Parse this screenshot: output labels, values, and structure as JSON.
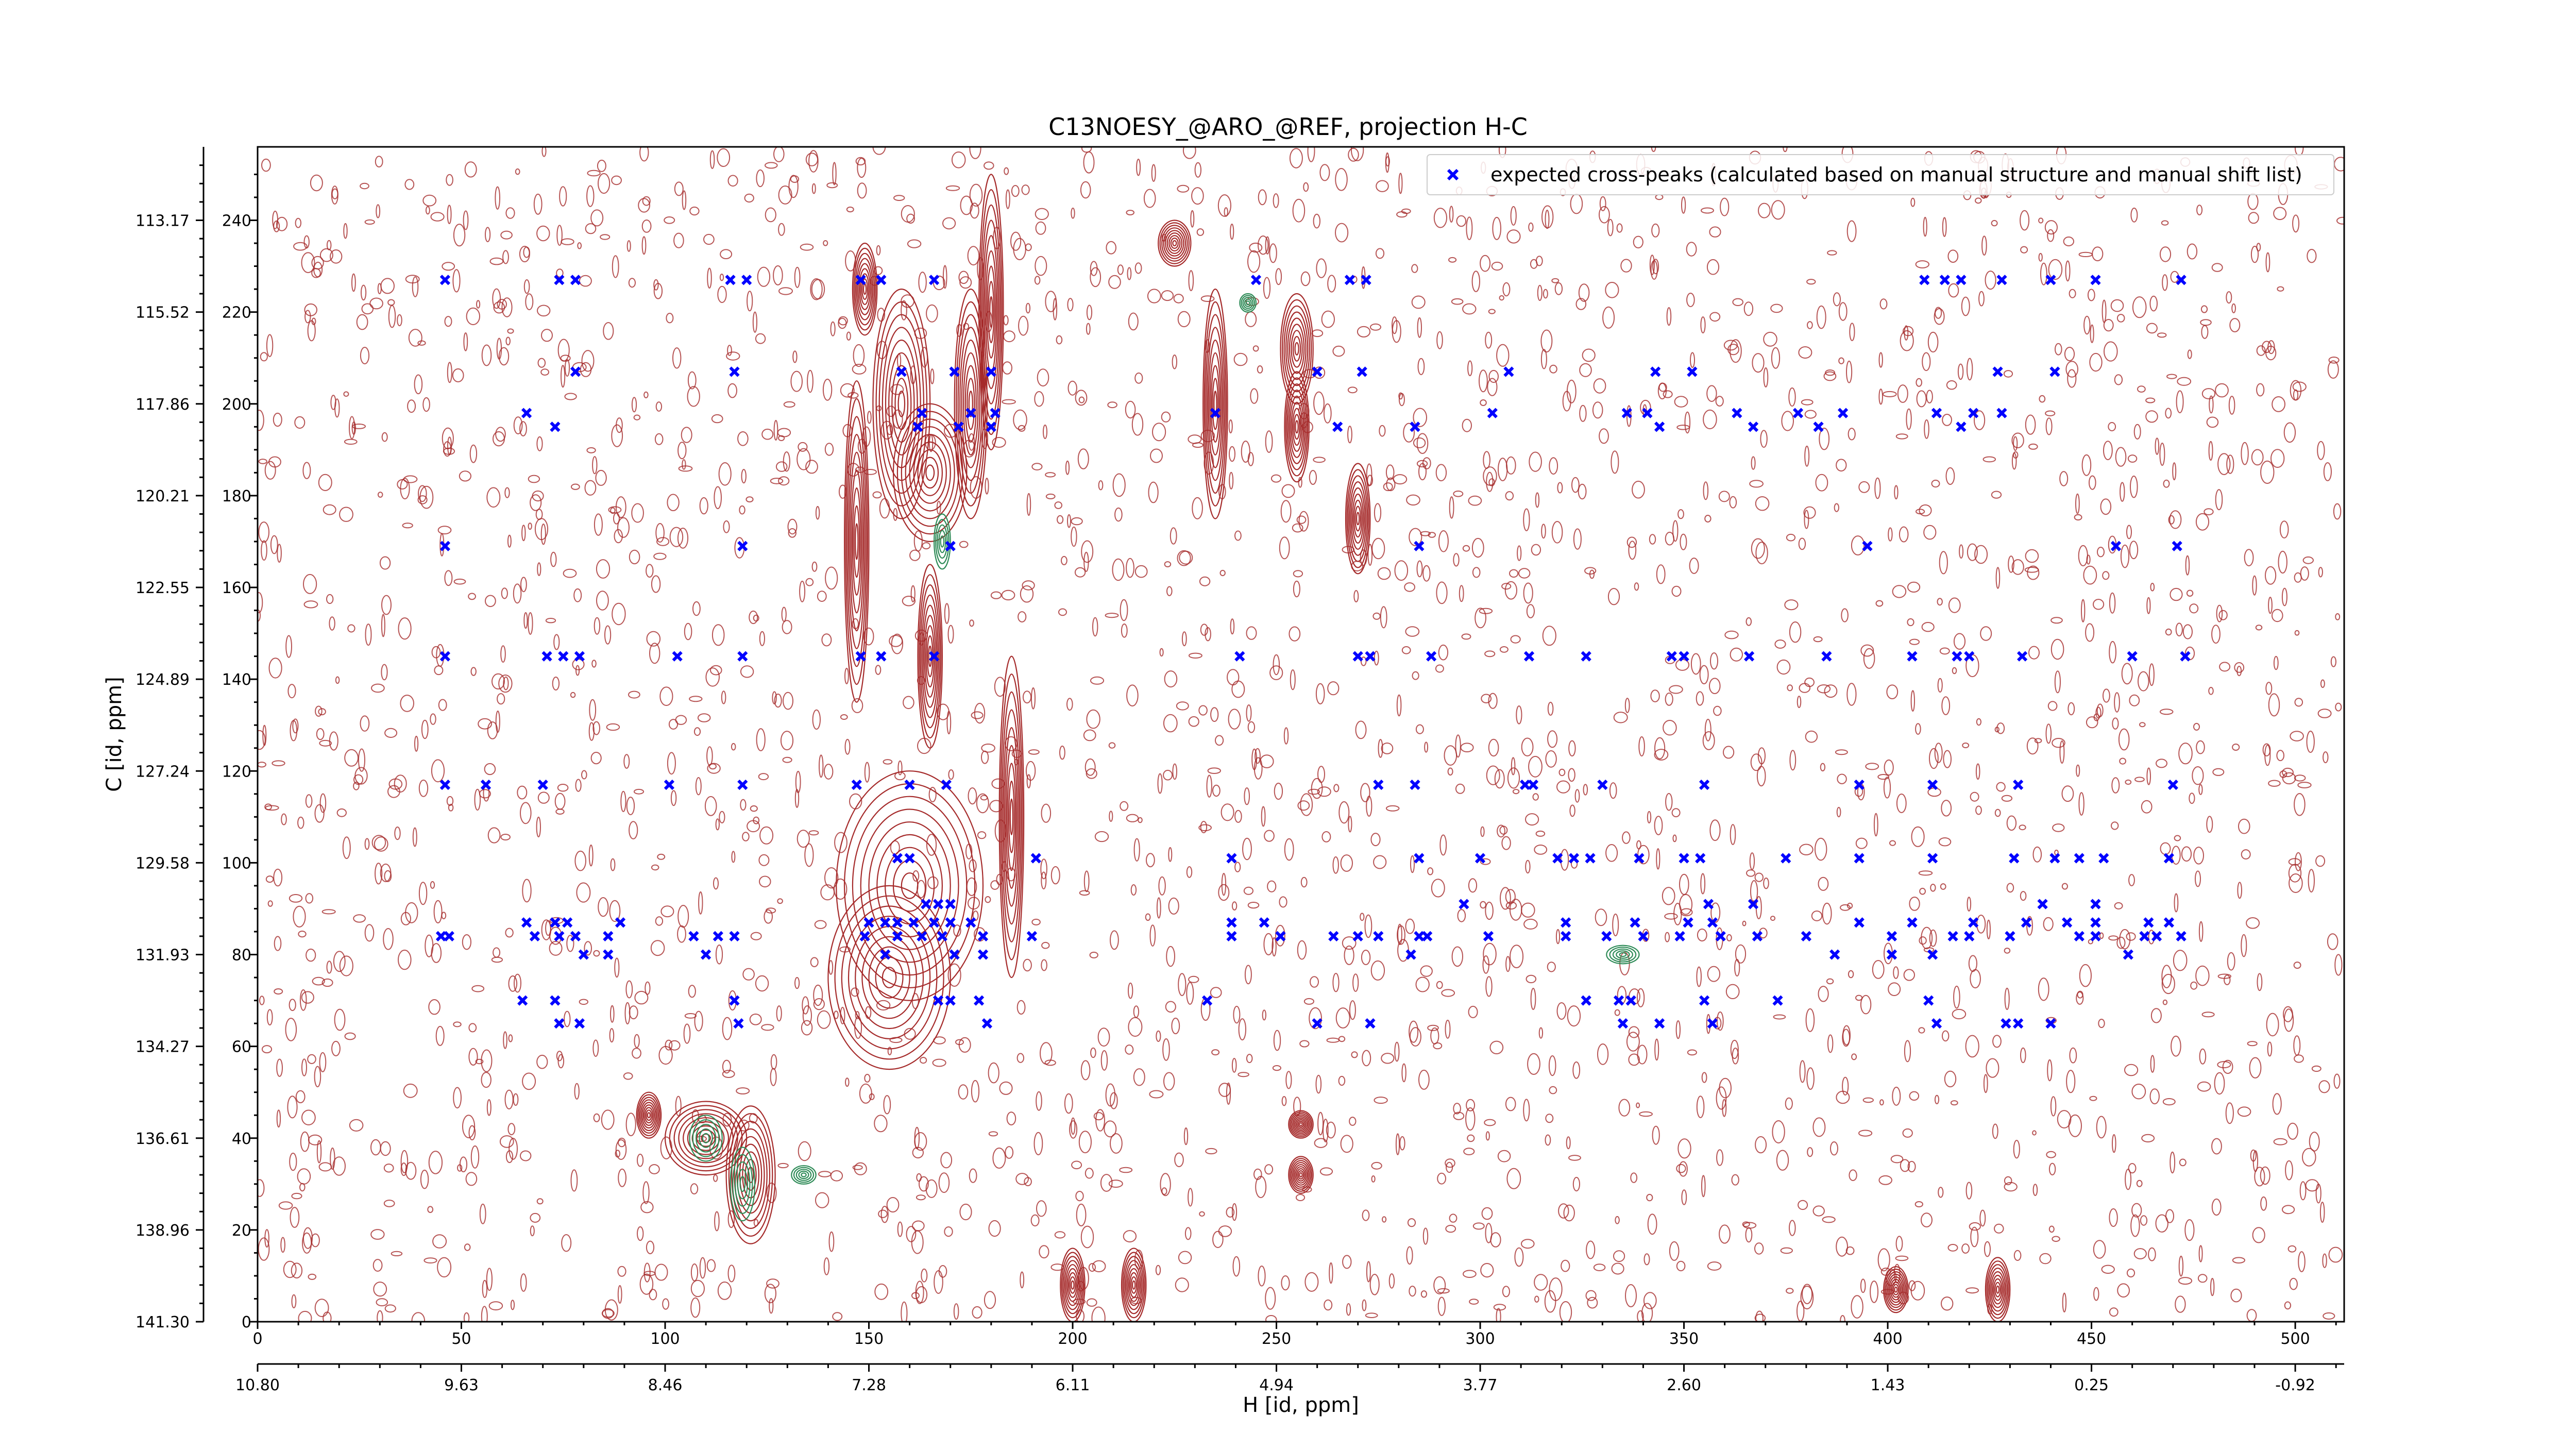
{
  "chart_data": {
    "type": "scatter",
    "title": "C13NOESY_@ARO_@REF, projection H-C",
    "xlabel": "H [id, ppm]",
    "ylabel": "C [id, ppm]",
    "xlim": [
      0,
      512
    ],
    "ylim": [
      0,
      256
    ],
    "x_ticks_index": [
      "0",
      "50",
      "100",
      "150",
      "200",
      "250",
      "300",
      "350",
      "400",
      "450",
      "500"
    ],
    "x_ticks_ppm": [
      "10.80",
      "9.63",
      "8.46",
      "7.28",
      "6.11",
      "4.94",
      "3.77",
      "2.60",
      "1.43",
      "0.25",
      "-0.92"
    ],
    "y_ticks_index": [
      "0",
      "20",
      "40",
      "60",
      "80",
      "100",
      "120",
      "140",
      "160",
      "180",
      "200",
      "220",
      "240"
    ],
    "y_ticks_ppm": [
      "141.30",
      "138.96",
      "136.61",
      "134.27",
      "131.93",
      "129.58",
      "127.24",
      "124.89",
      "122.55",
      "120.21",
      "117.86",
      "115.52",
      "113.17"
    ],
    "legend_location": "top-right",
    "colors": {
      "positive_contours": "#a52a2a",
      "negative_contours": "#2e8b57",
      "expected_peaks": "#0000ff"
    },
    "series": [
      {
        "name": "expected cross-peaks (calculated based on manual structure and manual shift list)",
        "marker": "x",
        "points": [
          [
            46,
            227
          ],
          [
            74,
            227
          ],
          [
            78,
            227
          ],
          [
            116,
            227
          ],
          [
            120,
            227
          ],
          [
            148,
            227
          ],
          [
            153,
            227
          ],
          [
            166,
            227
          ],
          [
            245,
            227
          ],
          [
            268,
            227
          ],
          [
            272,
            227
          ],
          [
            409,
            227
          ],
          [
            414,
            227
          ],
          [
            418,
            227
          ],
          [
            428,
            227
          ],
          [
            440,
            227
          ],
          [
            451,
            227
          ],
          [
            472,
            227
          ],
          [
            78,
            207
          ],
          [
            117,
            207
          ],
          [
            158,
            207
          ],
          [
            171,
            207
          ],
          [
            180,
            207
          ],
          [
            260,
            207
          ],
          [
            271,
            207
          ],
          [
            307,
            207
          ],
          [
            343,
            207
          ],
          [
            352,
            207
          ],
          [
            427,
            207
          ],
          [
            441,
            207
          ],
          [
            66,
            198
          ],
          [
            163,
            198
          ],
          [
            175,
            198
          ],
          [
            181,
            198
          ],
          [
            235,
            198
          ],
          [
            303,
            198
          ],
          [
            336,
            198
          ],
          [
            341,
            198
          ],
          [
            363,
            198
          ],
          [
            378,
            198
          ],
          [
            389,
            198
          ],
          [
            412,
            198
          ],
          [
            421,
            198
          ],
          [
            428,
            198
          ],
          [
            73,
            195
          ],
          [
            162,
            195
          ],
          [
            172,
            195
          ],
          [
            180,
            195
          ],
          [
            265,
            195
          ],
          [
            284,
            195
          ],
          [
            344,
            195
          ],
          [
            367,
            195
          ],
          [
            383,
            195
          ],
          [
            418,
            195
          ],
          [
            46,
            169
          ],
          [
            119,
            169
          ],
          [
            170,
            169
          ],
          [
            285,
            169
          ],
          [
            395,
            169
          ],
          [
            456,
            169
          ],
          [
            471,
            169
          ],
          [
            46,
            145
          ],
          [
            71,
            145
          ],
          [
            75,
            145
          ],
          [
            79,
            145
          ],
          [
            103,
            145
          ],
          [
            119,
            145
          ],
          [
            148,
            145
          ],
          [
            153,
            145
          ],
          [
            166,
            145
          ],
          [
            241,
            145
          ],
          [
            270,
            145
          ],
          [
            273,
            145
          ],
          [
            288,
            145
          ],
          [
            312,
            145
          ],
          [
            326,
            145
          ],
          [
            347,
            145
          ],
          [
            350,
            145
          ],
          [
            366,
            145
          ],
          [
            385,
            145
          ],
          [
            406,
            145
          ],
          [
            417,
            145
          ],
          [
            420,
            145
          ],
          [
            433,
            145
          ],
          [
            460,
            145
          ],
          [
            473,
            145
          ],
          [
            46,
            117
          ],
          [
            56,
            117
          ],
          [
            70,
            117
          ],
          [
            101,
            117
          ],
          [
            119,
            117
          ],
          [
            147,
            117
          ],
          [
            160,
            117
          ],
          [
            169,
            117
          ],
          [
            275,
            117
          ],
          [
            284,
            117
          ],
          [
            311,
            117
          ],
          [
            313,
            117
          ],
          [
            330,
            117
          ],
          [
            355,
            117
          ],
          [
            393,
            117
          ],
          [
            411,
            117
          ],
          [
            432,
            117
          ],
          [
            470,
            117
          ],
          [
            157,
            101
          ],
          [
            160,
            101
          ],
          [
            191,
            101
          ],
          [
            239,
            101
          ],
          [
            285,
            101
          ],
          [
            300,
            101
          ],
          [
            319,
            101
          ],
          [
            323,
            101
          ],
          [
            327,
            101
          ],
          [
            339,
            101
          ],
          [
            350,
            101
          ],
          [
            354,
            101
          ],
          [
            375,
            101
          ],
          [
            393,
            101
          ],
          [
            411,
            101
          ],
          [
            431,
            101
          ],
          [
            441,
            101
          ],
          [
            447,
            101
          ],
          [
            453,
            101
          ],
          [
            469,
            101
          ],
          [
            164,
            91
          ],
          [
            167,
            91
          ],
          [
            170,
            91
          ],
          [
            296,
            91
          ],
          [
            356,
            91
          ],
          [
            367,
            91
          ],
          [
            438,
            91
          ],
          [
            451,
            91
          ],
          [
            66,
            87
          ],
          [
            73,
            87
          ],
          [
            76,
            87
          ],
          [
            89,
            87
          ],
          [
            150,
            87
          ],
          [
            154,
            87
          ],
          [
            157,
            87
          ],
          [
            161,
            87
          ],
          [
            166,
            87
          ],
          [
            170,
            87
          ],
          [
            175,
            87
          ],
          [
            239,
            87
          ],
          [
            247,
            87
          ],
          [
            321,
            87
          ],
          [
            338,
            87
          ],
          [
            351,
            87
          ],
          [
            357,
            87
          ],
          [
            393,
            87
          ],
          [
            406,
            87
          ],
          [
            421,
            87
          ],
          [
            434,
            87
          ],
          [
            444,
            87
          ],
          [
            451,
            87
          ],
          [
            464,
            87
          ],
          [
            469,
            87
          ],
          [
            45,
            84
          ],
          [
            47,
            84
          ],
          [
            68,
            84
          ],
          [
            74,
            84
          ],
          [
            78,
            84
          ],
          [
            86,
            84
          ],
          [
            107,
            84
          ],
          [
            113,
            84
          ],
          [
            117,
            84
          ],
          [
            149,
            84
          ],
          [
            157,
            84
          ],
          [
            163,
            84
          ],
          [
            168,
            84
          ],
          [
            178,
            84
          ],
          [
            190,
            84
          ],
          [
            239,
            84
          ],
          [
            251,
            84
          ],
          [
            264,
            84
          ],
          [
            270,
            84
          ],
          [
            275,
            84
          ],
          [
            285,
            84
          ],
          [
            287,
            84
          ],
          [
            302,
            84
          ],
          [
            321,
            84
          ],
          [
            331,
            84
          ],
          [
            340,
            84
          ],
          [
            349,
            84
          ],
          [
            359,
            84
          ],
          [
            368,
            84
          ],
          [
            380,
            84
          ],
          [
            401,
            84
          ],
          [
            416,
            84
          ],
          [
            420,
            84
          ],
          [
            430,
            84
          ],
          [
            447,
            84
          ],
          [
            451,
            84
          ],
          [
            463,
            84
          ],
          [
            466,
            84
          ],
          [
            472,
            84
          ],
          [
            80,
            80
          ],
          [
            86,
            80
          ],
          [
            110,
            80
          ],
          [
            154,
            80
          ],
          [
            171,
            80
          ],
          [
            178,
            80
          ],
          [
            283,
            80
          ],
          [
            387,
            80
          ],
          [
            401,
            80
          ],
          [
            411,
            80
          ],
          [
            459,
            80
          ],
          [
            65,
            70
          ],
          [
            73,
            70
          ],
          [
            117,
            70
          ],
          [
            167,
            70
          ],
          [
            170,
            70
          ],
          [
            177,
            70
          ],
          [
            233,
            70
          ],
          [
            326,
            70
          ],
          [
            334,
            70
          ],
          [
            337,
            70
          ],
          [
            355,
            70
          ],
          [
            373,
            70
          ],
          [
            410,
            70
          ],
          [
            74,
            65
          ],
          [
            79,
            65
          ],
          [
            118,
            65
          ],
          [
            179,
            65
          ],
          [
            260,
            65
          ],
          [
            273,
            65
          ],
          [
            335,
            65
          ],
          [
            344,
            65
          ],
          [
            357,
            65
          ],
          [
            412,
            65
          ],
          [
            429,
            65
          ],
          [
            432,
            65
          ],
          [
            440,
            65
          ]
        ]
      }
    ],
    "contour_clusters": [
      {
        "x": 147,
        "y": 170,
        "sx": 3,
        "sy": 35,
        "sign": "pos"
      },
      {
        "x": 158,
        "y": 200,
        "sx": 7,
        "sy": 25,
        "sign": "pos"
      },
      {
        "x": 165,
        "y": 185,
        "sx": 9,
        "sy": 15,
        "sign": "pos"
      },
      {
        "x": 175,
        "y": 200,
        "sx": 4,
        "sy": 25,
        "sign": "pos"
      },
      {
        "x": 180,
        "y": 220,
        "sx": 3,
        "sy": 30,
        "sign": "pos"
      },
      {
        "x": 165,
        "y": 145,
        "sx": 3,
        "sy": 20,
        "sign": "pos"
      },
      {
        "x": 149,
        "y": 225,
        "sx": 3,
        "sy": 10,
        "sign": "pos"
      },
      {
        "x": 160,
        "y": 95,
        "sx": 18,
        "sy": 25,
        "sign": "pos"
      },
      {
        "x": 185,
        "y": 110,
        "sx": 3,
        "sy": 35,
        "sign": "pos"
      },
      {
        "x": 155,
        "y": 75,
        "sx": 15,
        "sy": 20,
        "sign": "pos"
      },
      {
        "x": 110,
        "y": 40,
        "sx": 10,
        "sy": 8,
        "sign": "pos"
      },
      {
        "x": 121,
        "y": 32,
        "sx": 6,
        "sy": 15,
        "sign": "pos"
      },
      {
        "x": 96,
        "y": 45,
        "sx": 3,
        "sy": 5,
        "sign": "pos"
      },
      {
        "x": 235,
        "y": 200,
        "sx": 3,
        "sy": 25,
        "sign": "pos"
      },
      {
        "x": 225,
        "y": 235,
        "sx": 4,
        "sy": 5,
        "sign": "pos"
      },
      {
        "x": 255,
        "y": 212,
        "sx": 4,
        "sy": 12,
        "sign": "pos"
      },
      {
        "x": 270,
        "y": 175,
        "sx": 3,
        "sy": 12,
        "sign": "pos"
      },
      {
        "x": 255,
        "y": 195,
        "sx": 3,
        "sy": 12,
        "sign": "pos"
      },
      {
        "x": 256,
        "y": 43,
        "sx": 3,
        "sy": 3,
        "sign": "pos"
      },
      {
        "x": 256,
        "y": 32,
        "sx": 3,
        "sy": 4,
        "sign": "pos"
      },
      {
        "x": 200,
        "y": 8,
        "sx": 3,
        "sy": 8,
        "sign": "pos"
      },
      {
        "x": 215,
        "y": 8,
        "sx": 3,
        "sy": 8,
        "sign": "pos"
      },
      {
        "x": 402,
        "y": 7,
        "sx": 3,
        "sy": 5,
        "sign": "pos"
      },
      {
        "x": 427,
        "y": 7,
        "sx": 3,
        "sy": 7,
        "sign": "pos"
      },
      {
        "x": 110,
        "y": 40,
        "sx": 4,
        "sy": 5,
        "sign": "neg"
      },
      {
        "x": 119,
        "y": 30,
        "sx": 3,
        "sy": 8,
        "sign": "neg"
      },
      {
        "x": 335,
        "y": 80,
        "sx": 4,
        "sy": 2,
        "sign": "neg"
      },
      {
        "x": 243,
        "y": 222,
        "sx": 2,
        "sy": 2,
        "sign": "neg"
      },
      {
        "x": 168,
        "y": 170,
        "sx": 2,
        "sy": 6,
        "sign": "neg"
      },
      {
        "x": 134,
        "y": 32,
        "sx": 3,
        "sy": 2,
        "sign": "neg"
      }
    ]
  }
}
